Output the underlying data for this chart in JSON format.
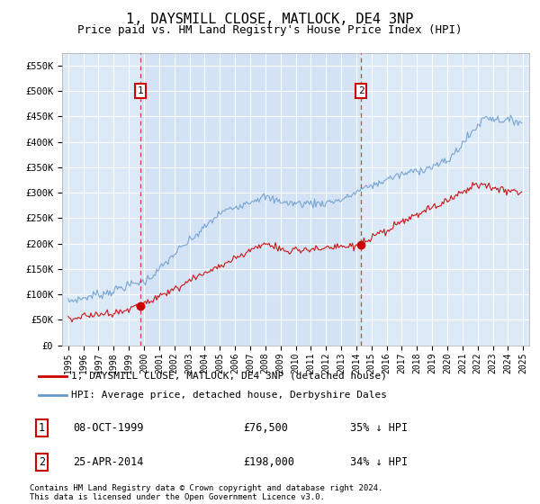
{
  "title": "1, DAYSMILL CLOSE, MATLOCK, DE4 3NP",
  "subtitle": "Price paid vs. HM Land Registry's House Price Index (HPI)",
  "title_fontsize": 11,
  "subtitle_fontsize": 9,
  "background_color": "#ffffff",
  "plot_bg_color": "#dce9f7",
  "plot_bg_color2": "#ccdff5",
  "grid_color": "#ffffff",
  "ylim": [
    0,
    575000
  ],
  "yticks": [
    0,
    50000,
    100000,
    150000,
    200000,
    250000,
    300000,
    350000,
    400000,
    450000,
    500000,
    550000
  ],
  "ytick_labels": [
    "£0",
    "£50K",
    "£100K",
    "£150K",
    "£200K",
    "£250K",
    "£300K",
    "£350K",
    "£400K",
    "£450K",
    "£500K",
    "£550K"
  ],
  "sale1_date": 1999.77,
  "sale1_price": 76500,
  "sale2_date": 2014.32,
  "sale2_price": 198000,
  "legend_label_red": "1, DAYSMILL CLOSE, MATLOCK, DE4 3NP (detached house)",
  "legend_label_blue": "HPI: Average price, detached house, Derbyshire Dales",
  "footer1": "Contains HM Land Registry data © Crown copyright and database right 2024.",
  "footer2": "This data is licensed under the Open Government Licence v3.0.",
  "red_color": "#cc0000",
  "blue_color": "#6699cc",
  "box_color": "#cc0000"
}
